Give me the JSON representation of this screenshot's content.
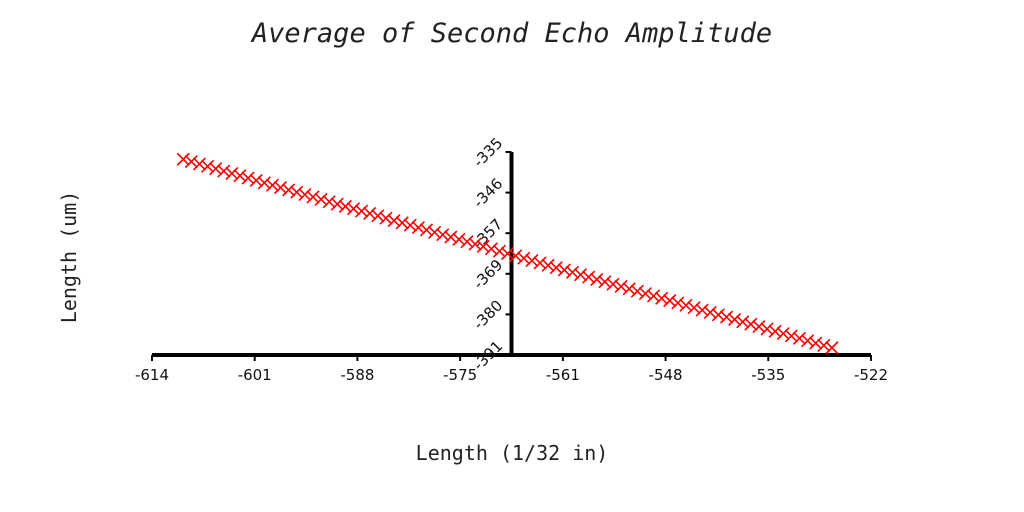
{
  "chart_data": {
    "type": "scatter",
    "title": "Average of Second Echo Amplitude",
    "xlabel": "Length (1/32 in)",
    "ylabel": "Length (um)",
    "xlim": [
      -614,
      -522
    ],
    "ylim": [
      -391,
      -335
    ],
    "x_ticks": [
      "-614",
      "-601",
      "-588",
      "-575",
      "-561",
      "-548",
      "-535",
      "-522"
    ],
    "y_ticks": [
      "-391",
      "-380",
      "-369",
      "-357",
      "-346",
      "-335"
    ],
    "x_axis_crosses_y_at": -391,
    "y_axis_crosses_x_at": -568,
    "marker": "x",
    "color": "#ff0000",
    "grid": false,
    "series": [
      {
        "x_start": -610,
        "x_end": -527,
        "y_start": -337,
        "y_end": -389,
        "count": 81
      }
    ]
  }
}
